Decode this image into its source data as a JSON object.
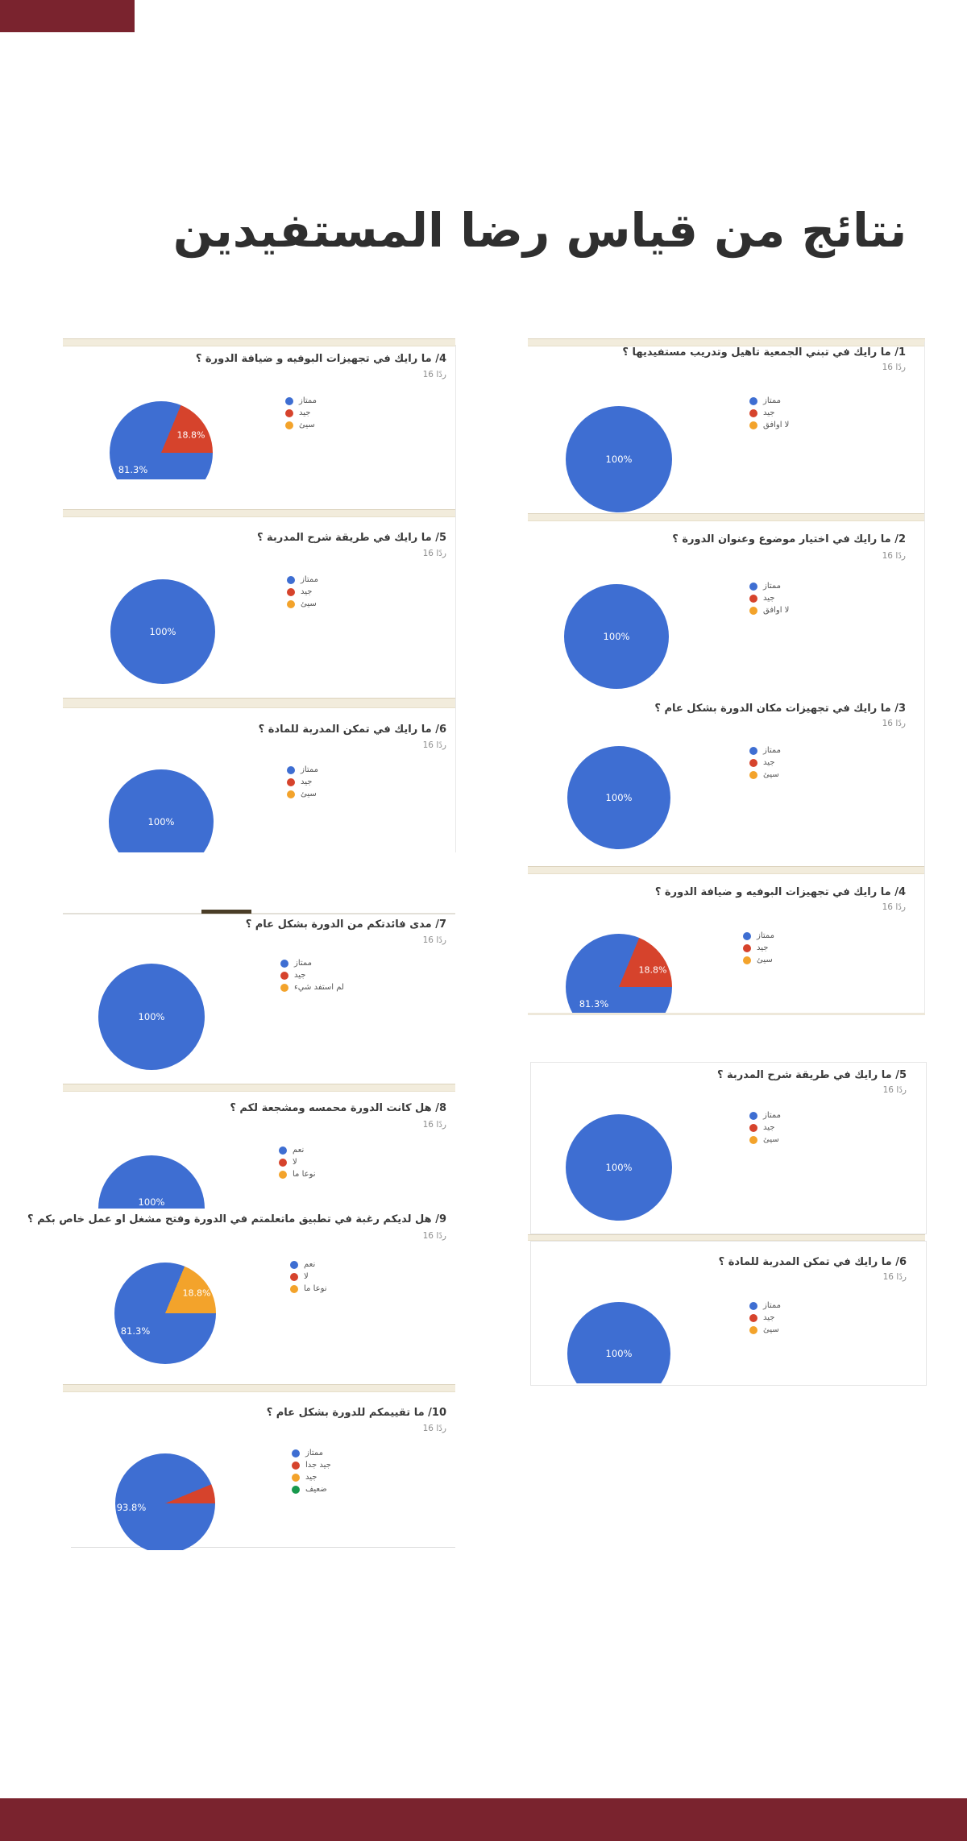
{
  "page": {
    "title": "نتائج من قياس رضا المستفيدين",
    "decor": {
      "top_bar_color": "#7a232e",
      "bottom_bar_color": "#7a232e"
    }
  },
  "colors": {
    "blue": "#3e6ed2",
    "red": "#d6432c",
    "orange": "#f3a32b",
    "green": "#18994d"
  },
  "chart_data": [
    {
      "id": "q1",
      "type": "pie",
      "question": "1/ ما رايك في تبني الجمعية تاهيل وتدريب مستفيديها ؟",
      "responses": "16 ردًا",
      "legend": [
        {
          "label": "ممتاز",
          "color": "#3e6ed2"
        },
        {
          "label": "جيد",
          "color": "#d6432c"
        },
        {
          "label": "لا اوافق",
          "color": "#f3a32b"
        }
      ],
      "slices": [
        {
          "label": "ممتاز",
          "value": 100,
          "color": "#3e6ed2"
        }
      ],
      "value_labels": [
        "100%"
      ]
    },
    {
      "id": "q2",
      "type": "pie",
      "question": "2/ ما رايك في اختيار موضوع وعنوان الدورة ؟",
      "responses": "16 ردًا",
      "legend": [
        {
          "label": "ممتاز",
          "color": "#3e6ed2"
        },
        {
          "label": "جيد",
          "color": "#d6432c"
        },
        {
          "label": "لا اوافق",
          "color": "#f3a32b"
        }
      ],
      "slices": [
        {
          "label": "ممتاز",
          "value": 100,
          "color": "#3e6ed2"
        }
      ],
      "value_labels": [
        "100%"
      ]
    },
    {
      "id": "q3",
      "type": "pie",
      "question": "3/ ما رايك في تجهيزات مكان الدورة بشكل عام ؟",
      "responses": "16 ردًا",
      "legend": [
        {
          "label": "ممتاز",
          "color": "#3e6ed2"
        },
        {
          "label": "جيد",
          "color": "#d6432c"
        },
        {
          "label": "سيئ",
          "color": "#f3a32b"
        }
      ],
      "slices": [
        {
          "label": "ممتاز",
          "value": 100,
          "color": "#3e6ed2"
        }
      ],
      "value_labels": [
        "100%"
      ]
    },
    {
      "id": "q4",
      "type": "pie",
      "question": "4/ ما رايك في تجهيزات البوفيه و ضيافة الدورة ؟",
      "responses": "16 ردًا",
      "legend": [
        {
          "label": "ممتاز",
          "color": "#3e6ed2"
        },
        {
          "label": "جيد",
          "color": "#d6432c"
        },
        {
          "label": "سيئ",
          "color": "#f3a32b"
        }
      ],
      "slices": [
        {
          "label": "ممتاز",
          "value": 81.25,
          "color": "#3e6ed2"
        },
        {
          "label": "جيد",
          "value": 18.75,
          "color": "#d6432c"
        }
      ],
      "value_labels": [
        "81.3%",
        "18.8%"
      ]
    },
    {
      "id": "q5",
      "type": "pie",
      "question": "5/ ما رايك في طريقة شرح المدربة ؟",
      "responses": "16 ردًا",
      "legend": [
        {
          "label": "ممتاز",
          "color": "#3e6ed2"
        },
        {
          "label": "جيد",
          "color": "#d6432c"
        },
        {
          "label": "سيئ",
          "color": "#f3a32b"
        }
      ],
      "slices": [
        {
          "label": "ممتاز",
          "value": 100,
          "color": "#3e6ed2"
        }
      ],
      "value_labels": [
        "100%"
      ]
    },
    {
      "id": "q6",
      "type": "pie",
      "question": "6/ ما رايك في تمكن  المدربة للمادة ؟",
      "responses": "16 ردًا",
      "legend": [
        {
          "label": "ممتاز",
          "color": "#3e6ed2"
        },
        {
          "label": "جيد",
          "color": "#d6432c"
        },
        {
          "label": "سيئ",
          "color": "#f3a32b"
        }
      ],
      "slices": [
        {
          "label": "ممتاز",
          "value": 100,
          "color": "#3e6ed2"
        }
      ],
      "value_labels": [
        "100%"
      ]
    },
    {
      "id": "q7",
      "type": "pie",
      "question": "7/ مدى فائدتكم من الدورة بشكل عام ؟",
      "responses": "16 ردًا",
      "legend": [
        {
          "label": "ممتاز",
          "color": "#3e6ed2"
        },
        {
          "label": "جيد",
          "color": "#d6432c"
        },
        {
          "label": "لم استفد شيء",
          "color": "#f3a32b"
        }
      ],
      "slices": [
        {
          "label": "ممتاز",
          "value": 100,
          "color": "#3e6ed2"
        }
      ],
      "value_labels": [
        "100%"
      ]
    },
    {
      "id": "q8",
      "type": "pie",
      "question": "8/ هل كانت الدورة محمسه ومشجعة لكم ؟",
      "responses": "16 ردًا",
      "legend": [
        {
          "label": "نعم",
          "color": "#3e6ed2"
        },
        {
          "label": "لا",
          "color": "#d6432c"
        },
        {
          "label": "نوعا ما",
          "color": "#f3a32b"
        }
      ],
      "slices": [
        {
          "label": "نعم",
          "value": 100,
          "color": "#3e6ed2"
        }
      ],
      "value_labels": [
        "100%"
      ]
    },
    {
      "id": "q9",
      "type": "pie",
      "question": "9/ هل لديكم رغبة في تطبيق ماتعلمتم في الدورة وفتح مشغل او عمل خاص بكم ؟",
      "responses": "16 ردًا",
      "legend": [
        {
          "label": "نعم",
          "color": "#3e6ed2"
        },
        {
          "label": "لا",
          "color": "#d6432c"
        },
        {
          "label": "نوعا ما",
          "color": "#f3a32b"
        }
      ],
      "slices": [
        {
          "label": "نعم",
          "value": 81.25,
          "color": "#3e6ed2"
        },
        {
          "label": "نوعا ما",
          "value": 18.75,
          "color": "#f3a32b"
        }
      ],
      "value_labels": [
        "81.3%",
        "18.8%"
      ]
    },
    {
      "id": "q10",
      "type": "pie",
      "question": "10/ ما تقييمكم للدورة بشكل عام ؟",
      "responses": "16 ردًا",
      "legend": [
        {
          "label": "ممتاز",
          "color": "#3e6ed2"
        },
        {
          "label": "جيد جدا",
          "color": "#d6432c"
        },
        {
          "label": "جيد",
          "color": "#f3a32b"
        },
        {
          "label": "ضعيف",
          "color": "#18994d"
        }
      ],
      "slices": [
        {
          "label": "ممتاز",
          "value": 93.75,
          "color": "#3e6ed2"
        },
        {
          "label": "جيد جدا",
          "value": 6.25,
          "color": "#d6432c"
        }
      ],
      "value_labels": [
        "93.8%"
      ]
    }
  ]
}
